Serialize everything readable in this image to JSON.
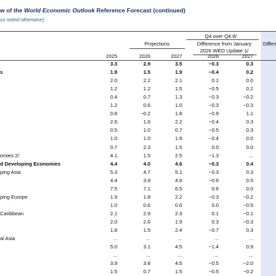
{
  "header": {
    "title_start": "w of the ",
    "title_italic": "World Economic Outlook",
    "title_end": " Reference Forecast (continued)",
    "subtitle": "ss noted otherwise)"
  },
  "table": {
    "group_header": "Q4 over Q4 8/",
    "projections": "Projections",
    "difference": [
      "Difference from January",
      "2026 WEO Update 1/"
    ],
    "right_cut": "Differe",
    "years": [
      "2025",
      "2026",
      "2027",
      "2026",
      "2027"
    ],
    "rows": [
      {
        "bold": true,
        "values": [
          "3.3",
          "2.9",
          "3.5",
          "−0.3",
          "0.3"
        ]
      },
      {
        "label": "s",
        "bold": true,
        "values": [
          "1.9",
          "1.5",
          "1.9",
          "−0.4",
          "0.2"
        ]
      },
      {
        "values": [
          "2.0",
          "2.2",
          "2.1",
          "0.1",
          "0.0"
        ]
      },
      {
        "values": [
          "1.2",
          "1.2",
          "1.5",
          "−0.5",
          "0.2"
        ]
      },
      {
        "values": [
          "0.4",
          "0.7",
          "1.3",
          "−0.3",
          "−0.2"
        ]
      },
      {
        "values": [
          "1.2",
          "0.6",
          "1.0",
          "−0.3",
          "−0.3"
        ]
      },
      {
        "values": [
          "0.8",
          "−0.2",
          "1.8",
          "−0.9",
          "1.1"
        ]
      },
      {
        "values": [
          "2.6",
          "1.6",
          "2.2",
          "−0.4",
          "0.3"
        ]
      },
      {
        "values": [
          "0.5",
          "1.0",
          "0.7",
          "−0.5",
          "0.3"
        ]
      },
      {
        "values": [
          "1.0",
          "1.0",
          "1.9",
          "−0.4",
          "0.0"
        ]
      },
      {
        "values": [
          "0.7",
          "2.3",
          "1.5",
          "0.0",
          "0.0"
        ]
      },
      {
        "label": "omies 2/",
        "values": [
          "4.1",
          "1.5",
          "2.5",
          "−1.3",
          "..."
        ]
      },
      {
        "label": "d Developing Economies",
        "bold": true,
        "values": [
          "4.4",
          "4.0",
          "4.6",
          "−0.3",
          "0.4"
        ]
      },
      {
        "label": "ping Asia",
        "values": [
          "5.3",
          "4.7",
          "5.1",
          "−0.3",
          "0.3"
        ]
      },
      {
        "values": [
          "4.4",
          "3.9",
          "4.6",
          "−0.6",
          "0.5"
        ]
      },
      {
        "values": [
          "7.5",
          "7.1",
          "6.5",
          "0.6",
          "0.0"
        ]
      },
      {
        "label": "ping Europe",
        "values": [
          "1.9",
          "1.8",
          "2.2",
          "−0.3",
          "−0.2"
        ]
      },
      {
        "values": [
          "1.0",
          "0.6",
          "0.6",
          "0.0",
          "−0.5"
        ]
      },
      {
        "label": "Caribbean",
        "values": [
          "2.1",
          "2.9",
          "2.3",
          "0.1",
          "−0.1"
        ]
      },
      {
        "values": [
          "2.0",
          "2.6",
          "1.9",
          "0.3",
          "−0.3"
        ]
      },
      {
        "values": [
          "1.8",
          "1.5",
          "2.4",
          "−0.7",
          "0.3"
        ]
      },
      {
        "label": "al Asia",
        "values": [
          "...",
          "...",
          "...",
          "...",
          "..."
        ]
      },
      {
        "values": [
          "5.0",
          "3.1",
          "4.5",
          "−1.4",
          "0.9"
        ]
      },
      {
        "values": [
          "...",
          "...",
          "...",
          "...",
          "..."
        ]
      },
      {
        "values": [
          "3.9",
          "3.8",
          "4.5",
          "−0.5",
          "−2.0"
        ]
      },
      {
        "values": [
          "1.5",
          "0.7",
          "1.5",
          "−0.5",
          "−0.2"
        ]
      }
    ]
  }
}
